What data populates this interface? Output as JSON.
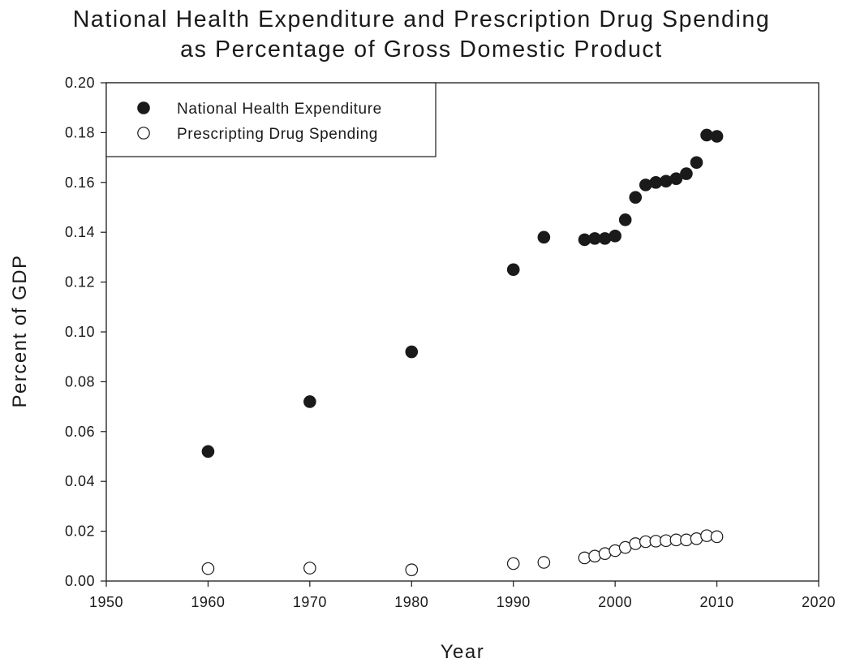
{
  "chart_data": {
    "type": "scatter",
    "title_lines": [
      "National Health Expenditure and Prescription Drug Spending",
      "as Percentage of Gross Domestic Product"
    ],
    "xlabel": "Year",
    "ylabel": "Percent of GDP",
    "xlim": [
      1950,
      2020
    ],
    "ylim": [
      0,
      0.2
    ],
    "x_ticks": [
      "1950",
      "1960",
      "1970",
      "1980",
      "1990",
      "2000",
      "2010",
      "2020"
    ],
    "y_ticks": [
      "0.00",
      "0.02",
      "0.04",
      "0.06",
      "0.08",
      "0.10",
      "0.12",
      "0.14",
      "0.16",
      "0.18",
      "0.20"
    ],
    "grid": false,
    "legend_position": "top-left",
    "series": [
      {
        "name": "National Health Expenditure",
        "marker": "filled-circle",
        "color": "#1a1a1a",
        "points": [
          [
            1960,
            0.052
          ],
          [
            1970,
            0.072
          ],
          [
            1980,
            0.092
          ],
          [
            1990,
            0.125
          ],
          [
            1993,
            0.138
          ],
          [
            1997,
            0.137
          ],
          [
            1998,
            0.1375
          ],
          [
            1999,
            0.1375
          ],
          [
            2000,
            0.1385
          ],
          [
            2001,
            0.145
          ],
          [
            2002,
            0.154
          ],
          [
            2003,
            0.159
          ],
          [
            2004,
            0.16
          ],
          [
            2005,
            0.1605
          ],
          [
            2006,
            0.1615
          ],
          [
            2007,
            0.1635
          ],
          [
            2008,
            0.168
          ],
          [
            2009,
            0.179
          ],
          [
            2010,
            0.1785
          ]
        ]
      },
      {
        "name": "Prescripting Drug Spending",
        "marker": "open-circle",
        "color": "#1a1a1a",
        "points": [
          [
            1960,
            0.005
          ],
          [
            1970,
            0.0052
          ],
          [
            1980,
            0.0045
          ],
          [
            1990,
            0.007
          ],
          [
            1993,
            0.0075
          ],
          [
            1997,
            0.0093
          ],
          [
            1998,
            0.01
          ],
          [
            1999,
            0.011
          ],
          [
            2000,
            0.0122
          ],
          [
            2001,
            0.0135
          ],
          [
            2002,
            0.015
          ],
          [
            2003,
            0.0158
          ],
          [
            2004,
            0.016
          ],
          [
            2005,
            0.0162
          ],
          [
            2006,
            0.0165
          ],
          [
            2007,
            0.0165
          ],
          [
            2008,
            0.017
          ],
          [
            2009,
            0.0182
          ],
          [
            2010,
            0.0178
          ]
        ]
      }
    ]
  }
}
